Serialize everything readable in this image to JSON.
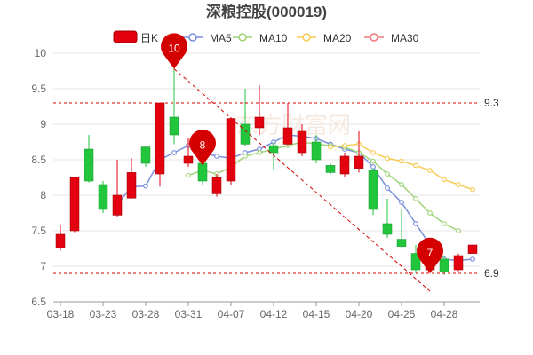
{
  "title": "深粮控股(000019)",
  "colors": {
    "up": "#e3000f",
    "down": "#22c63c",
    "ma5": "#7b8fdc",
    "ma10": "#9fd47a",
    "ma20": "#f7cc55",
    "ma30": "#f07b7b",
    "ref": "#d40000"
  },
  "legend": [
    {
      "key": "candle",
      "label": "日K"
    },
    {
      "key": "ma5",
      "label": "MA5"
    },
    {
      "key": "ma10",
      "label": "MA10"
    },
    {
      "key": "ma20",
      "label": "MA20"
    },
    {
      "key": "ma30",
      "label": "MA30"
    }
  ],
  "watermark": "东方财富网",
  "chart_data": {
    "type": "candlestick",
    "title": "深粮控股(000019)",
    "ylim": [
      6.5,
      10
    ],
    "yticks": [
      "6.5",
      "7",
      "7.5",
      "8",
      "8.5",
      "9",
      "9.5",
      "10"
    ],
    "xticks": [
      {
        "index": 0,
        "label": "03-18"
      },
      {
        "index": 3,
        "label": "03-23"
      },
      {
        "index": 6,
        "label": "03-28"
      },
      {
        "index": 9,
        "label": "03-31"
      },
      {
        "index": 12,
        "label": "04-07"
      },
      {
        "index": 15,
        "label": "04-12"
      },
      {
        "index": 18,
        "label": "04-15"
      },
      {
        "index": 21,
        "label": "04-20"
      },
      {
        "index": 24,
        "label": "04-25"
      },
      {
        "index": 27,
        "label": "04-28"
      }
    ],
    "ohlc": [
      [
        7.26,
        7.45,
        7.58,
        7.22
      ],
      [
        7.5,
        8.25,
        8.26,
        7.48
      ],
      [
        8.65,
        8.2,
        8.85,
        8.18
      ],
      [
        8.15,
        7.8,
        8.2,
        7.75
      ],
      [
        7.72,
        8.0,
        8.5,
        7.7
      ],
      [
        7.96,
        8.32,
        8.52,
        7.95
      ],
      [
        8.68,
        8.45,
        8.7,
        8.4
      ],
      [
        8.3,
        9.3,
        9.3,
        8.12
      ],
      [
        9.1,
        8.85,
        9.78,
        8.72
      ],
      [
        8.45,
        8.55,
        8.8,
        8.4
      ],
      [
        8.45,
        8.2,
        8.6,
        8.15
      ],
      [
        8.02,
        8.25,
        8.3,
        7.98
      ],
      [
        8.2,
        9.08,
        9.1,
        8.15
      ],
      [
        9.0,
        8.72,
        9.5,
        8.7
      ],
      [
        8.95,
        9.1,
        9.55,
        8.85
      ],
      [
        8.7,
        8.6,
        8.75,
        8.35
      ],
      [
        8.72,
        8.95,
        9.3,
        8.7
      ],
      [
        8.6,
        8.9,
        9.0,
        8.55
      ],
      [
        8.75,
        8.5,
        8.85,
        8.45
      ],
      [
        8.42,
        8.32,
        8.45,
        8.3
      ],
      [
        8.3,
        8.55,
        8.6,
        8.25
      ],
      [
        8.38,
        8.55,
        8.9,
        8.32
      ],
      [
        8.35,
        7.8,
        8.38,
        7.72
      ],
      [
        7.6,
        7.45,
        7.95,
        7.4
      ],
      [
        7.38,
        7.28,
        7.8,
        7.25
      ],
      [
        7.18,
        6.95,
        7.3,
        6.9
      ],
      [
        6.95,
        7.0,
        7.15,
        6.9
      ],
      [
        7.1,
        6.92,
        7.15,
        6.88
      ],
      [
        6.95,
        7.15,
        7.18,
        6.93
      ],
      [
        7.18,
        7.3,
        7.3,
        7.18
      ]
    ],
    "series": [
      {
        "name": "MA5",
        "values": [
          null,
          null,
          null,
          null,
          7.87,
          8.12,
          8.13,
          8.5,
          8.6,
          8.7,
          8.6,
          8.55,
          8.52,
          8.6,
          8.65,
          8.75,
          8.85,
          8.83,
          8.8,
          8.72,
          8.65,
          8.6,
          8.4,
          8.1,
          7.9,
          7.6,
          7.3,
          7.1,
          7.08,
          7.1
        ]
      },
      {
        "name": "MA10",
        "values": [
          null,
          null,
          null,
          null,
          null,
          null,
          null,
          null,
          null,
          8.28,
          8.35,
          8.3,
          8.4,
          8.55,
          8.6,
          8.65,
          8.7,
          8.75,
          8.72,
          8.7,
          8.68,
          8.6,
          8.48,
          8.3,
          8.15,
          7.95,
          7.75,
          7.6,
          7.5,
          null
        ]
      },
      {
        "name": "MA20",
        "values": [
          null,
          null,
          null,
          null,
          null,
          null,
          null,
          null,
          null,
          null,
          null,
          null,
          null,
          null,
          null,
          null,
          null,
          null,
          null,
          8.68,
          8.7,
          8.72,
          8.6,
          8.52,
          8.48,
          8.42,
          8.35,
          8.22,
          8.15,
          8.08
        ]
      },
      {
        "name": "MA30",
        "values": []
      }
    ],
    "ref_lines": [
      {
        "value": 9.3,
        "label": "9.3"
      },
      {
        "value": 6.9,
        "label": "6.9"
      }
    ],
    "pins": [
      {
        "index": 8,
        "price": 9.78,
        "label": "10"
      },
      {
        "index": 10,
        "price": 8.42,
        "label": "8"
      },
      {
        "index": 26,
        "price": 6.9,
        "label": "7"
      }
    ],
    "trend_line": {
      "from_index": 8,
      "from_price": 9.78,
      "to_index": 26,
      "to_price": 6.65
    },
    "grid": true
  }
}
